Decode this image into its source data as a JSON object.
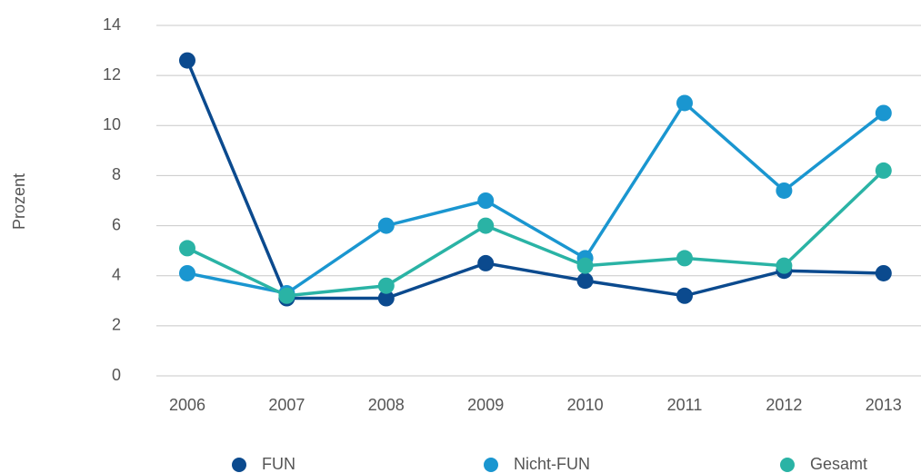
{
  "chart_data": {
    "type": "line",
    "y_label": "Prozent",
    "categories": [
      "2006",
      "2007",
      "2008",
      "2009",
      "2010",
      "2011",
      "2012",
      "2013"
    ],
    "series": [
      {
        "name": "FUN",
        "color": "#0b4a8e",
        "values": [
          12.6,
          3.1,
          3.1,
          4.5,
          3.8,
          3.2,
          4.2,
          4.1
        ]
      },
      {
        "name": "Nicht-FUN",
        "color": "#1a96d0",
        "values": [
          4.1,
          3.3,
          6.0,
          7.0,
          4.7,
          10.9,
          7.4,
          10.5
        ]
      },
      {
        "name": "Gesamt",
        "color": "#2ab3a5",
        "values": [
          5.1,
          3.2,
          3.6,
          6.0,
          4.4,
          4.7,
          4.4,
          8.2
        ]
      }
    ],
    "ylim": [
      0,
      14
    ],
    "yticks": [
      0,
      2,
      4,
      6,
      8,
      10,
      12,
      14
    ],
    "grid": true,
    "legend": "bottom"
  }
}
